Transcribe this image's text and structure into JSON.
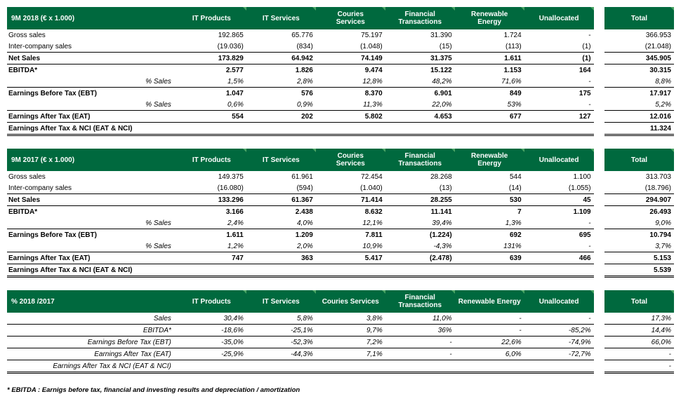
{
  "columns_two_line": [
    "IT Products",
    "IT Services",
    "Couries\nServices",
    "Financial\nTransactions",
    "Renewable\nEnergy",
    "Unallocated"
  ],
  "columns_one_line": [
    "IT Products",
    "IT Services",
    "Couries Services",
    "Financial\nTransactions",
    "Renewable Energy",
    "Unallocated"
  ],
  "total_label": "Total",
  "footnote": "* EBITDA : Earnigs before tax, financial and investing results and depreciation / amortization",
  "t1": {
    "title": "9M 2018  (€ x 1.000)",
    "rows": [
      {
        "l": "Gross sales",
        "v": [
          "192.865",
          "65.776",
          "75.197",
          "31.390",
          "1.724",
          "-"
        ],
        "t": "366.953",
        "cls": ""
      },
      {
        "l": "Inter-company sales",
        "v": [
          "(19.036)",
          "(834)",
          "(1.048)",
          "(15)",
          "(113)",
          "(1)"
        ],
        "t": "(21.048)",
        "cls": "ub"
      },
      {
        "l": "Net Sales",
        "v": [
          "173.829",
          "64.942",
          "74.149",
          "31.375",
          "1.611",
          "(1)"
        ],
        "t": "345.905",
        "cls": "b"
      },
      {
        "l": "EBITDA*",
        "v": [
          "2.577",
          "1.826",
          "9.474",
          "15.122",
          "1.153",
          "164"
        ],
        "t": "30.315",
        "cls": "b ut"
      },
      {
        "l": "% Sales",
        "v": [
          "1,5%",
          "2,8%",
          "12,8%",
          "48,2%",
          "71,6%",
          "-"
        ],
        "t": "8,8%",
        "cls": "i ub"
      },
      {
        "l": "Earnings Before Tax (EBT)",
        "v": [
          "1.047",
          "576",
          "8.370",
          "6.901",
          "849",
          "175"
        ],
        "t": "17.917",
        "cls": "b"
      },
      {
        "l": "% Sales",
        "v": [
          "0,6%",
          "0,9%",
          "11,3%",
          "22,0%",
          "53%",
          "-"
        ],
        "t": "5,2%",
        "cls": "i ub"
      },
      {
        "l": "Earnings After Tax (EAT)",
        "v": [
          "554",
          "202",
          "5.802",
          "4.653",
          "677",
          "127"
        ],
        "t": "12.016",
        "cls": "b ub"
      },
      {
        "l": "Earnings After Tax & NCI (EAT & NCI)",
        "v": [
          "",
          "",
          "",
          "",
          "",
          ""
        ],
        "t": "11.324",
        "cls": "b db"
      }
    ]
  },
  "t2": {
    "title": "9M 2017  (€ x 1.000)",
    "rows": [
      {
        "l": "Gross sales",
        "v": [
          "149.375",
          "61.961",
          "72.454",
          "28.268",
          "544",
          "1.100"
        ],
        "t": "313.703",
        "cls": ""
      },
      {
        "l": "Inter-company sales",
        "v": [
          "(16.080)",
          "(594)",
          "(1.040)",
          "(13)",
          "(14)",
          "(1.055)"
        ],
        "t": "(18.796)",
        "cls": "ub"
      },
      {
        "l": "Net Sales",
        "v": [
          "133.296",
          "61.367",
          "71.414",
          "28.255",
          "530",
          "45"
        ],
        "t": "294.907",
        "cls": "b"
      },
      {
        "l": "EBITDA*",
        "v": [
          "3.166",
          "2.438",
          "8.632",
          "11.141",
          "7",
          "1.109"
        ],
        "t": "26.493",
        "cls": "b ut"
      },
      {
        "l": "% Sales",
        "v": [
          "2,4%",
          "4,0%",
          "12,1%",
          "39,4%",
          "1,3%",
          "-"
        ],
        "t": "9,0%",
        "cls": "i ub"
      },
      {
        "l": "Earnings Before Tax (EBT)",
        "v": [
          "1.611",
          "1.209",
          "7.811",
          "(1.224)",
          "692",
          "695"
        ],
        "t": "10.794",
        "cls": "b"
      },
      {
        "l": "% Sales",
        "v": [
          "1,2%",
          "2,0%",
          "10,9%",
          "-4,3%",
          "131%",
          "-"
        ],
        "t": "3,7%",
        "cls": "i ub"
      },
      {
        "l": "Earnings After Tax (EAT)",
        "v": [
          "747",
          "363",
          "5.417",
          "(2.478)",
          "639",
          "466"
        ],
        "t": "5.153",
        "cls": "b ub"
      },
      {
        "l": "Earnings After Tax & NCI (EAT & NCI)",
        "v": [
          "",
          "",
          "",
          "",
          "",
          ""
        ],
        "t": "5.539",
        "cls": "b db"
      }
    ]
  },
  "t3": {
    "title": "% 2018 /2017",
    "rows": [
      {
        "l": "Sales",
        "v": [
          "30,4%",
          "5,8%",
          "3,8%",
          "11,0%",
          "-",
          "-"
        ],
        "t": "17,3%",
        "cls": "i ub"
      },
      {
        "l": "EBITDA*",
        "v": [
          "-18,6%",
          "-25,1%",
          "9,7%",
          "36%",
          "-",
          "-85,2%"
        ],
        "t": "14,4%",
        "cls": "i ub"
      },
      {
        "l": "Earnings Before Tax (EBT)",
        "v": [
          "-35,0%",
          "-52,3%",
          "7,2%",
          "-",
          "22,6%",
          "-74,9%"
        ],
        "t": "66,0%",
        "cls": "i ub"
      },
      {
        "l": "Earnings After Tax (EAT)",
        "v": [
          "-25,9%",
          "-44,3%",
          "7,1%",
          "-",
          "6,0%",
          "-72,7%"
        ],
        "t": "-",
        "cls": "i ub"
      },
      {
        "l": "Earnings After Tax & NCI (EAT & NCI)",
        "v": [
          "",
          "",
          "",
          "",
          "",
          ""
        ],
        "t": "-",
        "cls": "i db"
      }
    ]
  }
}
